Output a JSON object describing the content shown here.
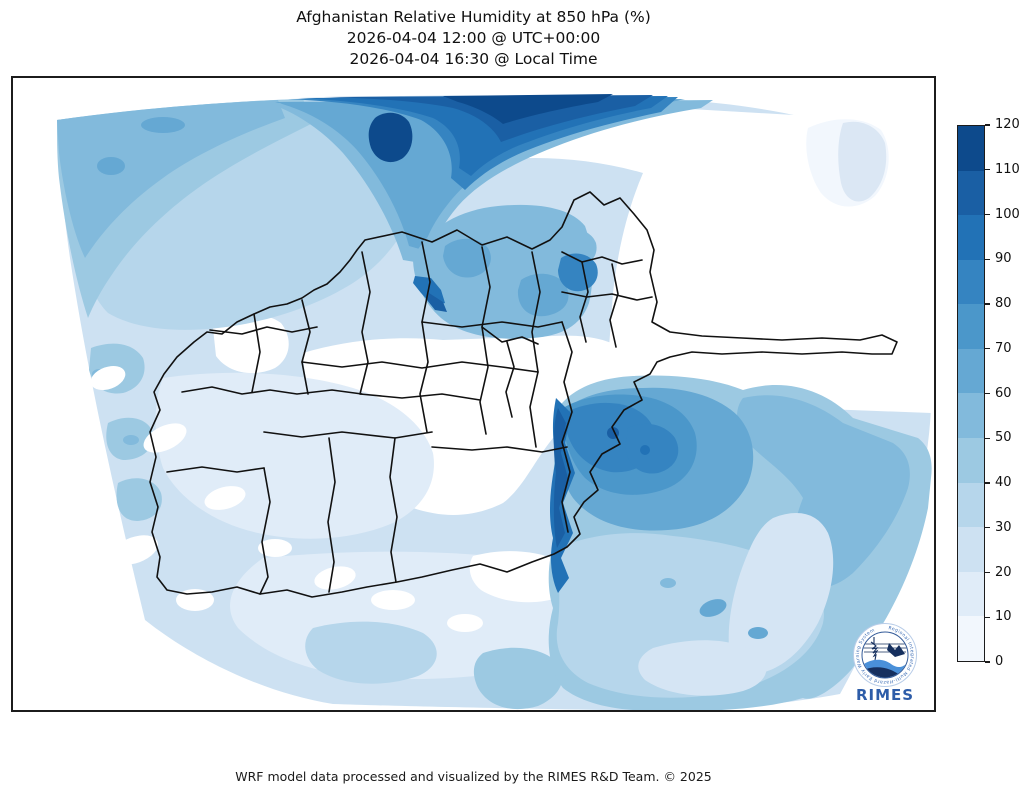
{
  "title": {
    "line1": "Afghanistan Relative Humidity at 850 hPa (%)",
    "line2": "2026-04-04 12:00 @ UTC+00:00",
    "line3": "2026-04-04 16:30 @ Local Time"
  },
  "colorbar": {
    "min": 0,
    "max": 120,
    "step": 10,
    "ticks": [
      0,
      10,
      20,
      30,
      40,
      50,
      60,
      70,
      80,
      90,
      100,
      110,
      120
    ],
    "segment_colors_top_to_bottom": [
      "#0d4a8c",
      "#1a5fa4",
      "#2272b6",
      "#3584c1",
      "#4b97ca",
      "#65a8d3",
      "#82badc",
      "#9cc9e2",
      "#b6d6eb",
      "#cde1f2",
      "#e0ecf8",
      "#f2f7fd"
    ],
    "border_color": "#1c1c1c"
  },
  "logo": {
    "name": "RIMES",
    "ring_text": "Regional Integrated Multi-Hazard Early Warning System",
    "accent": "#2d5ca8",
    "navy": "#16305f",
    "wave_blue": "#4a90d9"
  },
  "footer": {
    "credit": "WRF model data processed and visualized by the RIMES R&D Team. © 2025"
  },
  "chart_data": {
    "type": "heatmap",
    "subtype": "filled-contour weather map",
    "title": "Afghanistan Relative Humidity at 850 hPa (%)",
    "time_utc": "2026-04-04 12:00 @ UTC+00:00",
    "time_local": "2026-04-04 16:30 @ Local Time",
    "variable": "Relative Humidity",
    "pressure_level": "850 hPa",
    "unit": "%",
    "colormap": "Blues",
    "contour_levels": [
      0,
      10,
      20,
      30,
      40,
      50,
      60,
      70,
      80,
      90,
      100,
      110,
      120
    ],
    "level_colors_low_to_high": [
      "#f2f7fd",
      "#e0ecf8",
      "#cde1f2",
      "#b6d6eb",
      "#9cc9e2",
      "#82badc",
      "#65a8d3",
      "#4b97ca",
      "#3584c1",
      "#2272b6",
      "#1a5fa4",
      "#0d4a8c"
    ],
    "colorbar_position": "right",
    "overlay": "Afghanistan province boundaries (black)",
    "regions_read_from_map": [
      {
        "area": "far-north strip along upper domain edge",
        "rh_percent": "90-120"
      },
      {
        "area": "blob hanging below north strip",
        "rh_percent": "110-120"
      },
      {
        "area": "northwest quadrant of domain",
        "rh_percent": "20-60, increasing toward top-left edge"
      },
      {
        "area": "north-central Afghan provinces (Balkh/Samangan area)",
        "rh_percent": "40-70"
      },
      {
        "area": "central Afghanistan highlands",
        "rh_percent": "0-10 (near white)"
      },
      {
        "area": "band between north strip and northern provinces",
        "rh_percent": "0-10 (near white)"
      },
      {
        "area": "eastern Afghan border strip",
        "rh_percent": "80-110"
      },
      {
        "area": "large southeast lowland region (Pakistan side)",
        "rh_percent": "30-80, darker core 60-80 near border"
      },
      {
        "area": "southwest provinces (Nimroz/Helmand/Kandahar)",
        "rh_percent": "10-30 with near-white holes"
      },
      {
        "area": "south of Afghan border, bottom of domain",
        "rh_percent": "20-50"
      },
      {
        "area": "small patch upper-right (east Tajikistan)",
        "rh_percent": "10-30"
      }
    ]
  }
}
